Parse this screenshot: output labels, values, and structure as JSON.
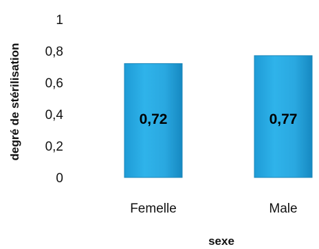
{
  "chart_data": {
    "type": "bar",
    "categories": [
      "Femelle",
      "Male"
    ],
    "values": [
      0.72,
      0.77
    ],
    "data_labels": [
      "0,72",
      "0,77"
    ],
    "xlabel": "sexe",
    "ylabel": "degré de stérilisation",
    "ylim": [
      0,
      1
    ],
    "yticks": [
      "0",
      "0,2",
      "0,4",
      "0,6",
      "0,8",
      "1"
    ],
    "grid": false,
    "legend": "none",
    "bar_color": "#29a9e1",
    "bar_edge_color": "#1b86b8"
  }
}
